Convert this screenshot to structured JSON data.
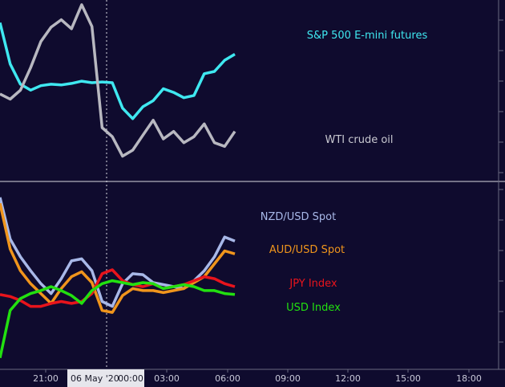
{
  "chart_data": [
    {
      "type": "line",
      "panel": "top",
      "x": [
        "19:00",
        "19:30",
        "20:00",
        "20:30",
        "21:00",
        "21:30",
        "22:00",
        "22:30",
        "23:00",
        "23:30",
        "00:00",
        "00:30",
        "01:00",
        "01:30",
        "02:00",
        "02:30",
        "03:00",
        "03:30",
        "04:00",
        "04:30",
        "05:00",
        "05:30",
        "06:00",
        "06:30"
      ],
      "series": [
        {
          "name": "S&P 500 E-mini futures",
          "color": "#3fe8f0",
          "values": [
            100,
            45,
            18,
            10,
            16,
            18,
            17,
            19,
            22,
            20,
            21,
            20,
            -14,
            -28,
            -12,
            -4,
            12,
            7,
            0,
            3,
            32,
            35,
            50,
            58
          ]
        },
        {
          "name": "WTI crude oil",
          "color": "#b8b8c0",
          "values": [
            5,
            -2,
            10,
            40,
            75,
            94,
            104,
            92,
            124,
            95,
            -40,
            -52,
            -78,
            -70,
            -50,
            -30,
            -55,
            -45,
            -60,
            -52,
            -35,
            -60,
            -65,
            -45
          ]
        }
      ],
      "ylim": [
        -100,
        125
      ]
    },
    {
      "type": "line",
      "panel": "bottom",
      "x": [
        "19:00",
        "19:30",
        "20:00",
        "20:30",
        "21:00",
        "21:30",
        "22:00",
        "22:30",
        "23:00",
        "23:30",
        "00:00",
        "00:30",
        "01:00",
        "01:30",
        "02:00",
        "02:30",
        "03:00",
        "03:30",
        "04:00",
        "04:30",
        "05:00",
        "05:30",
        "06:00",
        "06:30"
      ],
      "series": [
        {
          "name": "NZD/USD Spot",
          "color": "#a8b8e8",
          "values": [
            102,
            60,
            42,
            28,
            15,
            5,
            20,
            38,
            40,
            28,
            -3,
            -8,
            15,
            25,
            24,
            16,
            14,
            12,
            10,
            18,
            28,
            42,
            62,
            58
          ]
        },
        {
          "name": "AUD/USD Spot",
          "color": "#f0951c",
          "values": [
            96,
            50,
            28,
            15,
            5,
            -5,
            10,
            22,
            27,
            16,
            -12,
            -14,
            3,
            10,
            8,
            8,
            6,
            8,
            10,
            16,
            22,
            35,
            48,
            45
          ]
        },
        {
          "name": "JPY Index",
          "color": "#e8141c",
          "values": [
            4,
            2,
            -2,
            -8,
            -8,
            -5,
            -3,
            -5,
            -3,
            5,
            25,
            29,
            18,
            14,
            12,
            15,
            10,
            12,
            14,
            18,
            22,
            20,
            15,
            12
          ]
        },
        {
          "name": "USD Index",
          "color": "#22e010",
          "values": [
            -60,
            -12,
            0,
            5,
            8,
            12,
            8,
            3,
            -5,
            8,
            15,
            18,
            16,
            14,
            16,
            15,
            10,
            12,
            14,
            12,
            8,
            8,
            5,
            4
          ]
        }
      ],
      "ylim": [
        -65,
        110
      ]
    }
  ],
  "session_marker": {
    "date_label": "06 May '20"
  },
  "x_ticks": [
    "21:00",
    "00:00",
    "03:00",
    "06:00",
    "09:00",
    "12:00",
    "15:00",
    "18:00"
  ],
  "legend": {
    "sp500": "S&P 500 E-mini futures",
    "wti": "WTI crude oil",
    "nzd": "NZD/USD Spot",
    "aud": "AUD/USD Spot",
    "jpy": "JPY Index",
    "usd": "USD Index"
  },
  "colors": {
    "background": "#0f0b2e",
    "axis_box": "#ffffff"
  }
}
